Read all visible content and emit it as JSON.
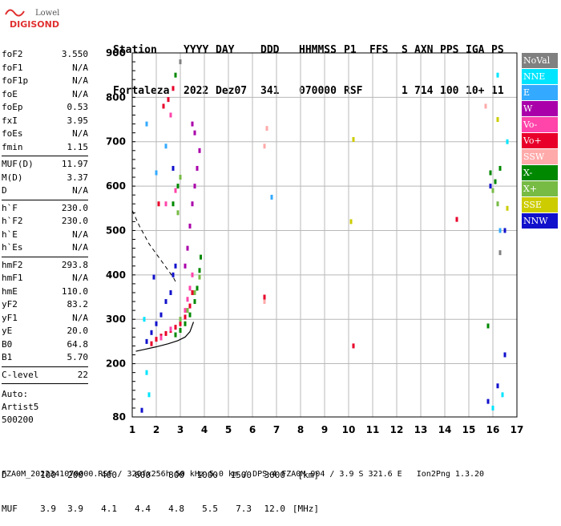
{
  "logo": {
    "line1": "Lowell",
    "line2": "DIGISONDE"
  },
  "header": {
    "row1": [
      "Station",
      "YYYY",
      "DAY",
      "DDD",
      "HHMMSS",
      "P1",
      "FFS",
      "S",
      "AXN",
      "PPS",
      "IGA",
      "PS"
    ],
    "row2": [
      "Fortaleza",
      "2022",
      "Dez07",
      "341",
      "070000",
      "RSF",
      "",
      "1",
      "714",
      "100",
      "10+",
      "11"
    ]
  },
  "params": [
    {
      "k": "foF2",
      "v": "3.550"
    },
    {
      "k": "foF1",
      "v": "N/A"
    },
    {
      "k": "foF1p",
      "v": "N/A"
    },
    {
      "k": "foE",
      "v": "N/A"
    },
    {
      "k": "foEp",
      "v": "0.53"
    },
    {
      "k": "fxI",
      "v": "3.95"
    },
    {
      "k": "foEs",
      "v": "N/A"
    },
    {
      "k": "fmin",
      "v": "1.15"
    },
    {
      "sep": true
    },
    {
      "k": "MUF(D)",
      "v": "11.97"
    },
    {
      "k": "M(D)",
      "v": "3.37"
    },
    {
      "k": "D",
      "v": "N/A"
    },
    {
      "sep": true
    },
    {
      "k": "h`F",
      "v": "230.0"
    },
    {
      "k": "h`F2",
      "v": "230.0"
    },
    {
      "k": "h`E",
      "v": "N/A"
    },
    {
      "k": "h`Es",
      "v": "N/A"
    },
    {
      "sep": true
    },
    {
      "k": "hmF2",
      "v": "293.8"
    },
    {
      "k": "hmF1",
      "v": "N/A"
    },
    {
      "k": "hmE",
      "v": "110.0"
    },
    {
      "k": "yF2",
      "v": "83.2"
    },
    {
      "k": "yF1",
      "v": "N/A"
    },
    {
      "k": "yE",
      "v": "20.0"
    },
    {
      "k": "B0",
      "v": "64.8"
    },
    {
      "k": "B1",
      "v": "5.70"
    },
    {
      "sep": true
    },
    {
      "k": "C-level",
      "v": "22"
    },
    {
      "sep": true
    }
  ],
  "auto": {
    "line1": "Auto:",
    "line2": "Artist5",
    "line3": "500200"
  },
  "legend": [
    {
      "label": "NoVal",
      "color": "#808080"
    },
    {
      "label": "NNE",
      "color": "#00e5ff"
    },
    {
      "label": "E",
      "color": "#33aaff"
    },
    {
      "label": "W",
      "color": "#aa00aa"
    },
    {
      "label": "Vo-",
      "color": "#ff44aa"
    },
    {
      "label": "Vo+",
      "color": "#e8002a"
    },
    {
      "label": "SSW",
      "color": "#ffaaaa"
    },
    {
      "label": "X-",
      "color": "#008800"
    },
    {
      "label": "X+",
      "color": "#77bb44"
    },
    {
      "label": "SSE",
      "color": "#cccc00"
    },
    {
      "label": "NNW",
      "color": "#1111cc"
    }
  ],
  "chart_data": {
    "type": "scatter",
    "xlim": [
      1,
      17
    ],
    "ylim": [
      80,
      900
    ],
    "x_ticks": [
      1,
      2,
      3,
      4,
      5,
      6,
      7,
      8,
      9,
      10,
      11,
      12,
      13,
      14,
      15,
      16,
      17
    ],
    "y_ticks": [
      80,
      200,
      300,
      400,
      500,
      600,
      700,
      800,
      900
    ],
    "grid": true,
    "legend_position": "right",
    "profile": {
      "x": [
        1.15,
        1.5,
        2.0,
        2.5,
        2.9,
        3.2,
        3.4,
        3.55
      ],
      "y": [
        228,
        232,
        238,
        245,
        252,
        260,
        272,
        294
      ]
    },
    "dashed_trace": {
      "x": [
        1.0,
        1.3,
        1.7,
        2.1,
        2.5,
        2.7,
        2.8
      ],
      "y": [
        545,
        510,
        470,
        440,
        410,
        395,
        385
      ]
    },
    "series": [
      {
        "name": "Vo+",
        "color": "#e8002a",
        "points": [
          [
            1.8,
            245
          ],
          [
            2.0,
            255
          ],
          [
            2.2,
            262
          ],
          [
            2.4,
            268
          ],
          [
            2.6,
            275
          ],
          [
            2.8,
            282
          ],
          [
            3.0,
            290
          ],
          [
            3.2,
            305
          ],
          [
            3.4,
            330
          ],
          [
            3.5,
            360
          ],
          [
            2.3,
            780
          ],
          [
            2.5,
            795
          ],
          [
            2.7,
            820
          ],
          [
            2.1,
            560
          ]
        ]
      },
      {
        "name": "Vo-",
        "color": "#ff44aa",
        "points": [
          [
            2.2,
            258
          ],
          [
            2.6,
            278
          ],
          [
            3.0,
            300
          ],
          [
            3.2,
            320
          ],
          [
            3.3,
            345
          ],
          [
            3.4,
            370
          ],
          [
            3.5,
            400
          ],
          [
            2.4,
            560
          ],
          [
            2.8,
            590
          ],
          [
            2.6,
            760
          ]
        ]
      },
      {
        "name": "W",
        "color": "#aa00aa",
        "points": [
          [
            3.2,
            420
          ],
          [
            3.3,
            460
          ],
          [
            3.4,
            510
          ],
          [
            3.5,
            560
          ],
          [
            3.6,
            600
          ],
          [
            3.7,
            640
          ],
          [
            3.8,
            680
          ],
          [
            3.6,
            720
          ],
          [
            3.5,
            740
          ]
        ]
      },
      {
        "name": "X-",
        "color": "#008800",
        "points": [
          [
            2.8,
            265
          ],
          [
            3.0,
            275
          ],
          [
            3.2,
            290
          ],
          [
            3.4,
            310
          ],
          [
            3.6,
            340
          ],
          [
            3.7,
            370
          ],
          [
            3.8,
            410
          ],
          [
            3.85,
            440
          ],
          [
            2.7,
            560
          ],
          [
            2.9,
            600
          ],
          [
            2.8,
            850
          ],
          [
            15.9,
            630
          ],
          [
            16.1,
            610
          ],
          [
            16.3,
            640
          ],
          [
            15.8,
            285
          ]
        ]
      },
      {
        "name": "X+",
        "color": "#77bb44",
        "points": [
          [
            3.0,
            300
          ],
          [
            3.3,
            320
          ],
          [
            3.6,
            360
          ],
          [
            3.8,
            395
          ],
          [
            2.9,
            540
          ],
          [
            3.0,
            620
          ],
          [
            16.0,
            590
          ],
          [
            16.2,
            560
          ]
        ]
      },
      {
        "name": "NNW",
        "color": "#1111cc",
        "points": [
          [
            1.6,
            250
          ],
          [
            1.8,
            270
          ],
          [
            2.0,
            290
          ],
          [
            2.2,
            310
          ],
          [
            2.4,
            340
          ],
          [
            2.6,
            360
          ],
          [
            2.7,
            400
          ],
          [
            2.8,
            420
          ],
          [
            1.9,
            395
          ],
          [
            2.7,
            640
          ],
          [
            1.4,
            95
          ],
          [
            15.8,
            115
          ],
          [
            16.2,
            150
          ],
          [
            16.5,
            220
          ],
          [
            16.5,
            500
          ],
          [
            15.9,
            600
          ]
        ]
      },
      {
        "name": "E",
        "color": "#33aaff",
        "points": [
          [
            2.0,
            630
          ],
          [
            2.4,
            690
          ],
          [
            1.6,
            740
          ],
          [
            6.8,
            575
          ],
          [
            16.3,
            500
          ]
        ]
      },
      {
        "name": "NNE",
        "color": "#00e5ff",
        "points": [
          [
            1.5,
            300
          ],
          [
            1.6,
            180
          ],
          [
            1.7,
            130
          ],
          [
            16.0,
            100
          ],
          [
            16.4,
            130
          ],
          [
            16.6,
            700
          ],
          [
            16.2,
            850
          ]
        ]
      },
      {
        "name": "SSW",
        "color": "#ffaaaa",
        "points": [
          [
            6.5,
            690
          ],
          [
            6.5,
            340
          ],
          [
            6.6,
            730
          ],
          [
            15.7,
            780
          ]
        ]
      },
      {
        "name": "SSE",
        "color": "#cccc00",
        "points": [
          [
            10.1,
            520
          ],
          [
            10.2,
            705
          ],
          [
            16.2,
            750
          ],
          [
            16.6,
            550
          ]
        ]
      },
      {
        "name": "NoVal",
        "color": "#808080",
        "points": [
          [
            3.0,
            880
          ],
          [
            16.3,
            450
          ]
        ]
      },
      {
        "name": "Vo+ isolated",
        "color": "#e8002a",
        "points": [
          [
            10.2,
            240
          ],
          [
            6.5,
            350
          ],
          [
            14.5,
            525
          ]
        ]
      }
    ]
  },
  "footer": {
    "d_label": "D",
    "d_values": [
      "100",
      "200",
      "400",
      "600",
      "800",
      "1000",
      "1500",
      "3000",
      "[km]"
    ],
    "muf_label": "MUF",
    "muf_values": [
      "3.9",
      "3.9",
      "4.1",
      "4.4",
      "4.8",
      "5.5",
      "7.3",
      "12.0",
      "[MHz]"
    ],
    "info": "FZA0M_2022341070000.RSF / 320fx256h 50 kHz 5.0 km / DPS-4 FZA0M 904 / 3.9 S 321.6 E   Ion2Png 1.3.20"
  }
}
